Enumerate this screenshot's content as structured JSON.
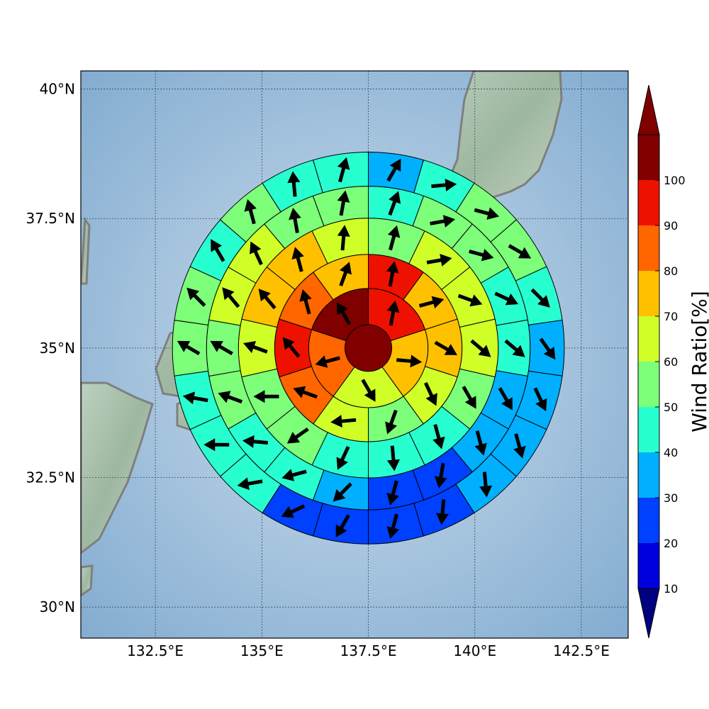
{
  "map": {
    "lon_range": [
      130.75,
      143.6
    ],
    "lat_range": [
      29.4,
      40.35
    ],
    "center": {
      "lon": 137.5,
      "lat": 35.0
    },
    "x_ticks": [
      132.5,
      135,
      137.5,
      140,
      142.5
    ],
    "y_ticks": [
      30,
      32.5,
      35,
      37.5,
      40
    ],
    "x_tick_labels": [
      "132.5°E",
      "135°E",
      "137.5°E",
      "140°E",
      "142.5°E"
    ],
    "y_tick_labels": [
      "30°N",
      "32.5°N",
      "35°N",
      "37.5°N",
      "40°N"
    ],
    "grid": true
  },
  "colorbar": {
    "title": "Wind Ratio[%]",
    "ticks": [
      10,
      20,
      30,
      40,
      50,
      60,
      70,
      80,
      90,
      100
    ],
    "tick_labels": [
      "10",
      "20",
      "30",
      "40",
      "50",
      "60",
      "70",
      "80",
      "90",
      "100"
    ],
    "colors": [
      "#0000df",
      "#0040ff",
      "#00b0ff",
      "#28ffd0",
      "#7dff7a",
      "#d0ff28",
      "#ffc000",
      "#ff6600",
      "#ef1100",
      "#800000"
    ],
    "under_color": "#000080",
    "over_color": "#800000",
    "extend": "both"
  },
  "chart_data": {
    "type": "polar-sector-map",
    "center": {
      "lon": 137.5,
      "lat": 35.0
    },
    "ring_edges_deg": [
      0,
      0.55,
      1.4,
      2.2,
      3.05,
      3.8,
      4.6
    ],
    "rings": [
      {
        "sectors": 1,
        "values": [
          100
        ],
        "wind_dir": [
          null
        ]
      },
      {
        "sectors": 5,
        "values": [
          95,
          75,
          65,
          85,
          100
        ],
        "wind_dir": [
          10,
          95,
          150,
          255,
          330
        ]
      },
      {
        "sectors": 10,
        "values": [
          95,
          75,
          75,
          65,
          55,
          65,
          80,
          92,
          85,
          75
        ],
        "wind_dir": [
          10,
          75,
          120,
          155,
          200,
          265,
          290,
          320,
          345,
          20
        ]
      },
      {
        "sectors": 14,
        "values": [
          55,
          65,
          65,
          65,
          55,
          45,
          45,
          45,
          55,
          55,
          65,
          75,
          75,
          65
        ],
        "wind_dir": [
          15,
          80,
          110,
          130,
          150,
          165,
          175,
          205,
          235,
          270,
          290,
          320,
          345,
          5
        ]
      },
      {
        "sectors": 18,
        "values": [
          45,
          55,
          55,
          45,
          45,
          35,
          35,
          25,
          25,
          35,
          45,
          45,
          55,
          55,
          65,
          65,
          55,
          55
        ],
        "wind_dir": [
          20,
          80,
          105,
          115,
          130,
          150,
          165,
          190,
          195,
          225,
          255,
          275,
          290,
          300,
          320,
          335,
          350,
          10
        ]
      },
      {
        "sectors": 22,
        "values": [
          35,
          45,
          55,
          55,
          45,
          35,
          35,
          35,
          35,
          25,
          25,
          25,
          25,
          45,
          45,
          45,
          55,
          55,
          45,
          55,
          45,
          45
        ],
        "wind_dir": [
          30,
          85,
          105,
          120,
          135,
          145,
          155,
          165,
          175,
          185,
          195,
          210,
          245,
          260,
          270,
          280,
          300,
          315,
          330,
          345,
          355,
          15
        ]
      }
    ],
    "ring_sector_values_outer": [
      35,
      35,
      55,
      55,
      45,
      35,
      35,
      35,
      35,
      25,
      15,
      15,
      20,
      35,
      35,
      45,
      45,
      55,
      55,
      45,
      45,
      45
    ],
    "outer_wind_dir": [
      60,
      90,
      110,
      120,
      135,
      150,
      160,
      165,
      175,
      180,
      190,
      200,
      235,
      255,
      270,
      285,
      300,
      315,
      330,
      345,
      355,
      15
    ]
  }
}
